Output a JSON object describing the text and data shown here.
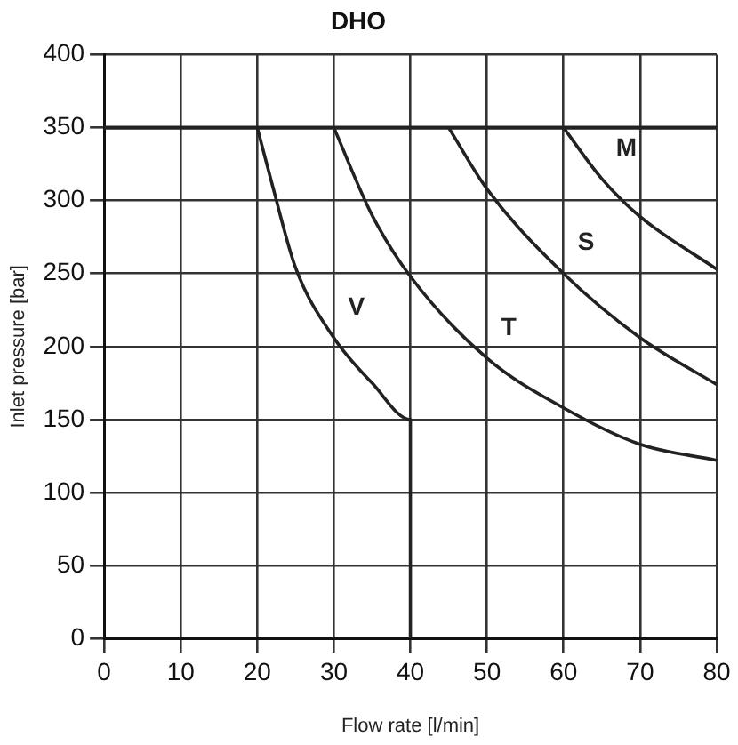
{
  "chart_data": {
    "type": "line",
    "title": "DHO",
    "xlabel": "Flow rate [l/min]",
    "ylabel": "Inlet pressure [bar]",
    "xlim": [
      0,
      80
    ],
    "xticks": [
      0,
      10,
      20,
      30,
      40,
      50,
      60,
      70,
      80
    ],
    "ylim": [
      0,
      400
    ],
    "yticks": [
      0,
      50,
      100,
      150,
      200,
      250,
      300,
      350,
      400
    ],
    "grid": true,
    "legend": false,
    "marker": "none",
    "line_style": "solid",
    "ref_lines": [
      {
        "axis": "y",
        "value": 350,
        "color": "#222222"
      }
    ],
    "series": [
      {
        "name": "V",
        "color": "#222222",
        "x": [
          20,
          22,
          25,
          30,
          35,
          40,
          40
        ],
        "values": [
          350,
          310,
          254,
          206,
          175,
          150,
          0
        ]
      },
      {
        "name": "T",
        "color": "#222222",
        "x": [
          30,
          35,
          40,
          50,
          60,
          70,
          80
        ],
        "values": [
          350,
          290,
          248,
          192,
          158,
          133,
          122
        ]
      },
      {
        "name": "S",
        "color": "#222222",
        "x": [
          45,
          50,
          60,
          70,
          80
        ],
        "values": [
          350,
          308,
          250,
          206,
          174
        ]
      },
      {
        "name": "M",
        "color": "#222222",
        "x": [
          60,
          65,
          70,
          80
        ],
        "values": [
          350,
          315,
          289,
          253
        ]
      }
    ]
  }
}
